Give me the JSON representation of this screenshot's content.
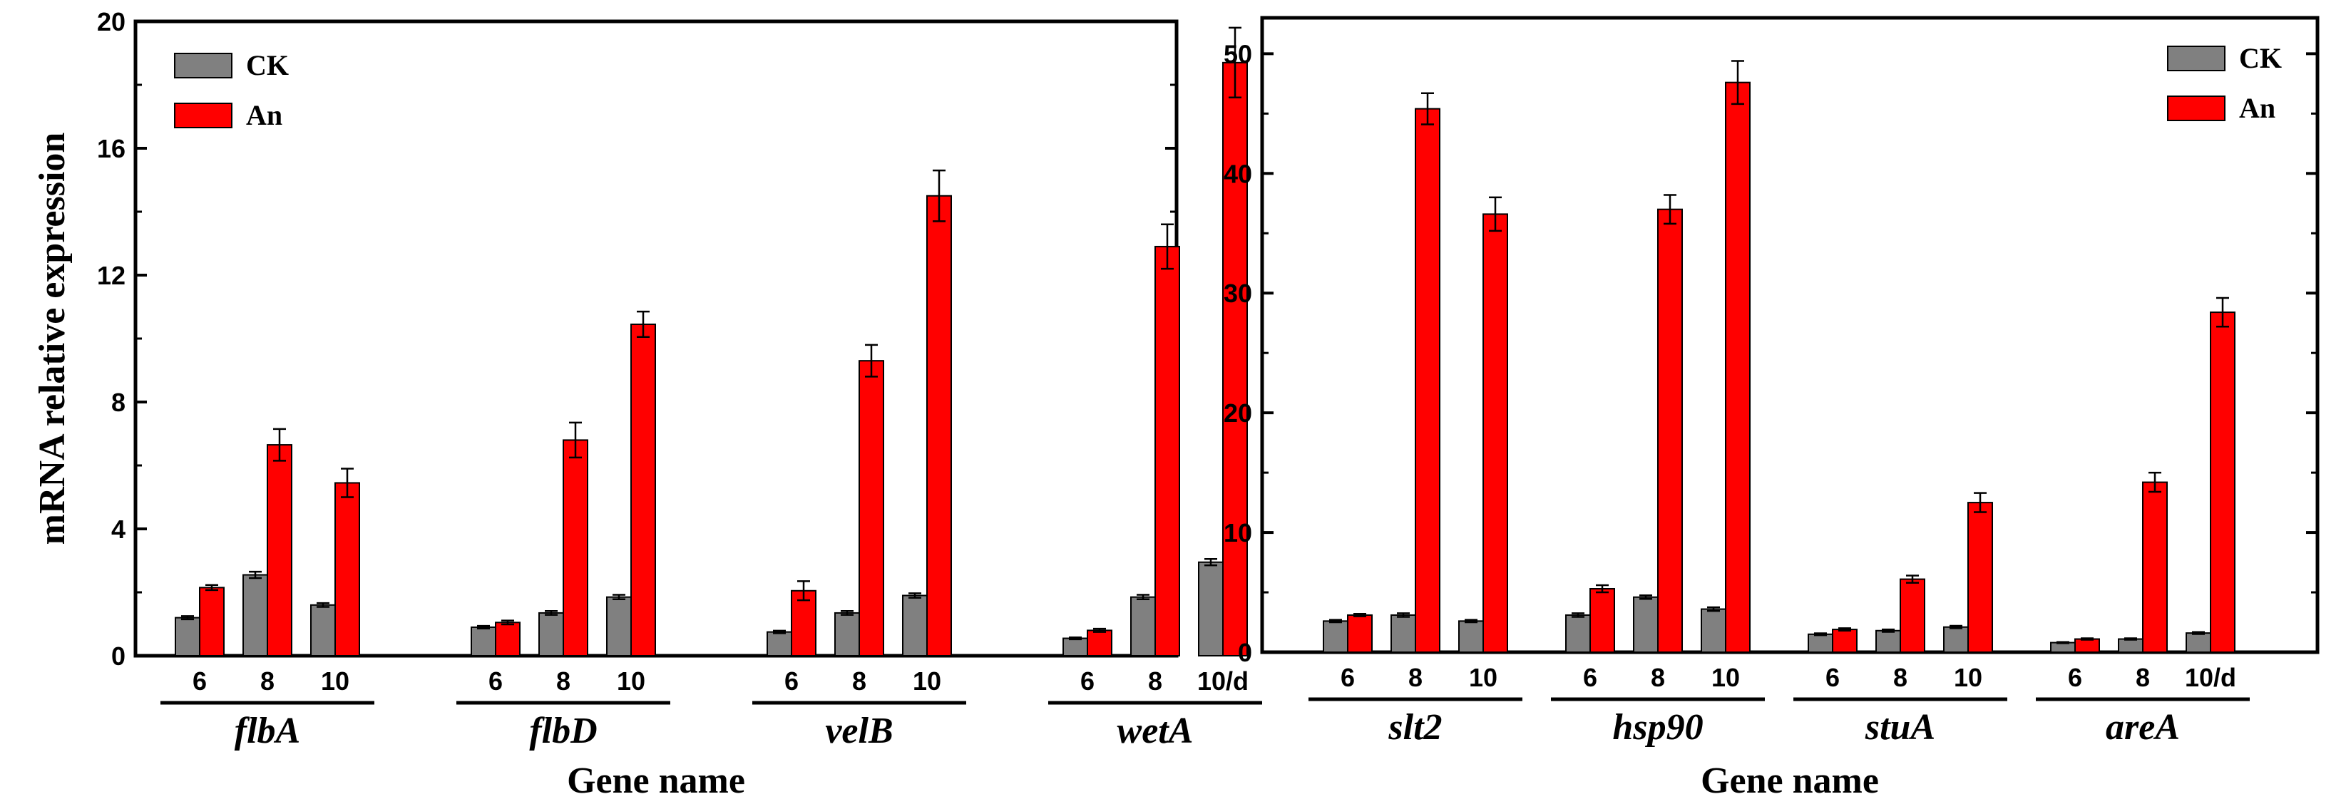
{
  "chart_data": [
    {
      "type": "bar",
      "title": "",
      "ylabel": "mRNA relative expression",
      "xlabel": "Gene name",
      "ylim": [
        0,
        20
      ],
      "yticks": [
        "0",
        "4",
        "8",
        "12",
        "16",
        "20"
      ],
      "ytick_values": [
        0,
        4,
        8,
        12,
        16,
        20
      ],
      "legend": [
        {
          "name": "CK",
          "color": "#808080"
        },
        {
          "name": "An",
          "color": "#ff0000"
        }
      ],
      "legend_position": "top-left",
      "genes": [
        {
          "name": "flbA",
          "days": [
            "6",
            "8",
            "10"
          ],
          "CK": [
            1.2,
            2.55,
            1.6
          ],
          "CK_err": [
            0.05,
            0.1,
            0.06
          ],
          "An": [
            2.15,
            6.65,
            5.45
          ],
          "An_err": [
            0.08,
            0.5,
            0.45
          ]
        },
        {
          "name": "flbD",
          "days": [
            "6",
            "8",
            "10"
          ],
          "CK": [
            0.9,
            1.35,
            1.85
          ],
          "CK_err": [
            0.04,
            0.06,
            0.07
          ],
          "An": [
            1.05,
            6.8,
            10.45
          ],
          "An_err": [
            0.06,
            0.55,
            0.4
          ]
        },
        {
          "name": "velB",
          "days": [
            "6",
            "8",
            "10"
          ],
          "CK": [
            0.75,
            1.35,
            1.9
          ],
          "CK_err": [
            0.04,
            0.06,
            0.07
          ],
          "An": [
            2.05,
            9.3,
            14.5
          ],
          "An_err": [
            0.3,
            0.5,
            0.8
          ]
        },
        {
          "name": "wetA",
          "days": [
            "6",
            "8",
            "10/d"
          ],
          "CK": [
            0.55,
            1.85,
            2.95
          ],
          "CK_err": [
            0.03,
            0.07,
            0.1
          ],
          "An": [
            0.8,
            12.9,
            18.7
          ],
          "An_err": [
            0.05,
            0.7,
            1.1
          ]
        }
      ]
    },
    {
      "type": "bar",
      "title": "",
      "ylabel": "",
      "xlabel": "Gene name",
      "ylim": [
        0,
        53
      ],
      "yticks": [
        "0",
        "10",
        "20",
        "30",
        "40",
        "50"
      ],
      "ytick_values": [
        0,
        10,
        20,
        30,
        40,
        50
      ],
      "legend": [
        {
          "name": "CK",
          "color": "#808080"
        },
        {
          "name": "An",
          "color": "#ff0000"
        }
      ],
      "legend_position": "top-right",
      "genes": [
        {
          "name": "slt2",
          "days": [
            "6",
            "8",
            "10"
          ],
          "CK": [
            2.6,
            3.1,
            2.6
          ],
          "CK_err": [
            0.1,
            0.15,
            0.1
          ],
          "An": [
            3.1,
            45.4,
            36.6
          ],
          "An_err": [
            0.1,
            1.3,
            1.4
          ]
        },
        {
          "name": "hsp90",
          "days": [
            "6",
            "8",
            "10"
          ],
          "CK": [
            3.1,
            4.6,
            3.6
          ],
          "CK_err": [
            0.15,
            0.15,
            0.15
          ],
          "An": [
            5.3,
            37.0,
            47.6
          ],
          "An_err": [
            0.3,
            1.2,
            1.8
          ]
        },
        {
          "name": "stuA",
          "days": [
            "6",
            "8",
            "10"
          ],
          "CK": [
            1.5,
            1.8,
            2.1
          ],
          "CK_err": [
            0.08,
            0.1,
            0.1
          ],
          "An": [
            1.9,
            6.1,
            12.5
          ],
          "An_err": [
            0.1,
            0.3,
            0.8
          ]
        },
        {
          "name": "areA",
          "days": [
            "6",
            "8",
            "10/d"
          ],
          "CK": [
            0.8,
            1.1,
            1.6
          ],
          "CK_err": [
            0.05,
            0.06,
            0.08
          ],
          "An": [
            1.1,
            14.2,
            28.4
          ],
          "An_err": [
            0.06,
            0.8,
            1.2
          ]
        }
      ]
    }
  ]
}
